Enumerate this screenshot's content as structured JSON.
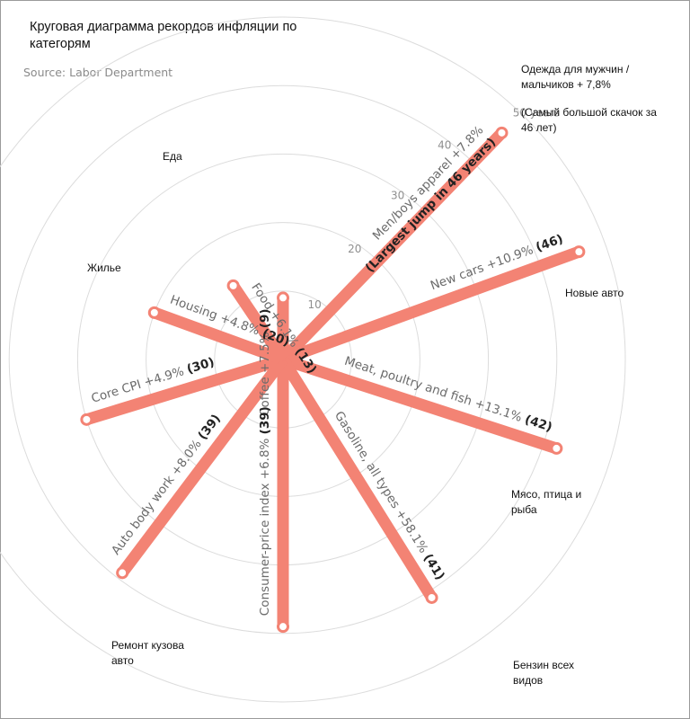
{
  "chart_data": {
    "type": "radial-bar",
    "title": "Круговая диаграмма рекордов инфляции по категорям",
    "source": "Source: Labor Department",
    "unit": "years",
    "r_max": 50,
    "ring_labels": [
      "10",
      "20",
      "30",
      "40",
      "50 years"
    ],
    "series": [
      {
        "category": "Coffee",
        "change": "+7.5%",
        "years": 9,
        "angle_deg": 90,
        "ru": "",
        "highlight": ""
      },
      {
        "category": "Men/boys apparel",
        "change": "+7.8%",
        "years": 46,
        "angle_deg": 46,
        "ru": "Одежда для мужчин / мальчиков + 7,8%",
        "ru_note": "(Самый большой скачок за 46 лет)",
        "highlight": "Largest jump in 46 years"
      },
      {
        "category": "New cars",
        "change": "+10.9%",
        "years": 46,
        "angle_deg": 20,
        "ru": "Новые авто",
        "highlight": ""
      },
      {
        "category": "Meat, poultry and fish",
        "change": "+13.1%",
        "years": 42,
        "angle_deg": -18,
        "ru": "Мясо, птица и рыба",
        "highlight": ""
      },
      {
        "category": "Gasoline, all types",
        "change": "+58.1%",
        "years": 41,
        "angle_deg": -58,
        "ru": "Бензин всех видов",
        "highlight": ""
      },
      {
        "category": "Consumer-price index",
        "change": "+6.8%",
        "years": 39,
        "angle_deg": -90,
        "ru": "",
        "highlight": ""
      },
      {
        "category": "Auto body work",
        "change": "+8.0%",
        "years": 39,
        "angle_deg": -127,
        "ru": "Ремонт кузова авто",
        "highlight": ""
      },
      {
        "category": "Core CPI",
        "change": "+4.9%",
        "years": 30,
        "angle_deg": -163,
        "ru": "",
        "highlight": ""
      },
      {
        "category": "Housing",
        "change": "+4.8%",
        "years": 20,
        "angle_deg": 160,
        "ru": "Жилье",
        "highlight": ""
      },
      {
        "category": "Food",
        "change": "+6.1%",
        "years": 13,
        "angle_deg": 124,
        "ru": "Еда",
        "highlight": ""
      }
    ]
  }
}
